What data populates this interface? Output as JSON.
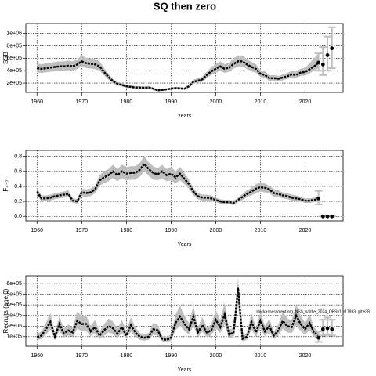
{
  "chart_data": [
    {
      "type": "line",
      "title": "SQ then zero",
      "ylabel": "SSB",
      "xlabel": "Years",
      "x": [
        1960,
        1961,
        1962,
        1963,
        1964,
        1965,
        1966,
        1967,
        1968,
        1969,
        1970,
        1971,
        1972,
        1973,
        1974,
        1975,
        1976,
        1977,
        1978,
        1979,
        1980,
        1981,
        1982,
        1983,
        1984,
        1985,
        1986,
        1987,
        1988,
        1989,
        1990,
        1991,
        1992,
        1993,
        1994,
        1995,
        1996,
        1997,
        1998,
        1999,
        2000,
        2001,
        2002,
        2003,
        2004,
        2005,
        2006,
        2007,
        2008,
        2009,
        2010,
        2011,
        2012,
        2013,
        2014,
        2015,
        2016,
        2017,
        2018,
        2019,
        2020,
        2021,
        2022,
        2023
      ],
      "values": [
        440000,
        430000,
        440000,
        450000,
        460000,
        470000,
        470000,
        480000,
        470000,
        500000,
        550000,
        520000,
        510000,
        500000,
        470000,
        380000,
        300000,
        230000,
        190000,
        170000,
        150000,
        140000,
        130000,
        130000,
        125000,
        130000,
        110000,
        85000,
        90000,
        100000,
        110000,
        120000,
        115000,
        110000,
        150000,
        220000,
        240000,
        260000,
        330000,
        390000,
        430000,
        470000,
        430000,
        450000,
        510000,
        550000,
        550000,
        500000,
        460000,
        430000,
        350000,
        330000,
        280000,
        280000,
        270000,
        290000,
        310000,
        340000,
        330000,
        370000,
        380000,
        420000,
        470000,
        520000
      ],
      "lower": [
        374000,
        366000,
        374000,
        383000,
        391000,
        400000,
        400000,
        408000,
        400000,
        425000,
        468000,
        442000,
        434000,
        425000,
        400000,
        323000,
        255000,
        196000,
        162000,
        145000,
        128000,
        119000,
        111000,
        111000,
        106000,
        111000,
        94000,
        72000,
        77000,
        85000,
        94000,
        102000,
        98000,
        94000,
        128000,
        187000,
        204000,
        221000,
        281000,
        332000,
        366000,
        400000,
        366000,
        383000,
        434000,
        468000,
        468000,
        425000,
        391000,
        366000,
        298000,
        281000,
        238000,
        238000,
        230000,
        247000,
        264000,
        289000,
        281000,
        315000,
        323000,
        357000,
        400000,
        442000
      ],
      "upper": [
        515000,
        503000,
        515000,
        527000,
        538000,
        550000,
        550000,
        562000,
        550000,
        585000,
        644000,
        608000,
        597000,
        585000,
        550000,
        445000,
        351000,
        269000,
        222000,
        199000,
        176000,
        164000,
        152000,
        152000,
        146000,
        152000,
        129000,
        99000,
        105000,
        117000,
        129000,
        140000,
        135000,
        129000,
        176000,
        257000,
        281000,
        304000,
        386000,
        456000,
        503000,
        550000,
        503000,
        527000,
        597000,
        644000,
        644000,
        585000,
        538000,
        503000,
        410000,
        386000,
        328000,
        328000,
        316000,
        339000,
        363000,
        398000,
        386000,
        433000,
        445000,
        520000,
        600000,
        680000
      ],
      "forecast": {
        "x": [
          2023,
          2024,
          2025,
          2026
        ],
        "values": [
          530000,
          500000,
          650000,
          760000
        ],
        "lower": [
          400000,
          330000,
          400000,
          440000
        ],
        "upper": [
          680000,
          780000,
          950000,
          1100000
        ]
      },
      "xlim": [
        1957.5,
        2028.5
      ],
      "ylim": [
        50000,
        1160000
      ],
      "xticks": [
        1960,
        1970,
        1980,
        1990,
        2000,
        2010,
        2020
      ],
      "yticks": [
        {
          "value": 200000,
          "label": "2e+05"
        },
        {
          "value": 400000,
          "label": "4e+05"
        },
        {
          "value": 600000,
          "label": "6e+05"
        },
        {
          "value": 800000,
          "label": "8e+05"
        },
        {
          "value": 1000000,
          "label": "1e+06"
        }
      ],
      "color": "#000000",
      "band_color": "#bebebe",
      "grid": true
    },
    {
      "type": "line",
      "ylabel": "F₄₋₇",
      "xlabel": "Years",
      "x": [
        1960,
        1961,
        1962,
        1963,
        1964,
        1965,
        1966,
        1967,
        1968,
        1969,
        1970,
        1971,
        1972,
        1973,
        1974,
        1975,
        1976,
        1977,
        1978,
        1979,
        1980,
        1981,
        1982,
        1983,
        1984,
        1985,
        1986,
        1987,
        1988,
        1989,
        1990,
        1991,
        1992,
        1993,
        1994,
        1995,
        1996,
        1997,
        1998,
        1999,
        2000,
        2001,
        2002,
        2003,
        2004,
        2005,
        2006,
        2007,
        2008,
        2009,
        2010,
        2011,
        2012,
        2013,
        2014,
        2015,
        2016,
        2017,
        2018,
        2019,
        2020,
        2021,
        2022,
        2023
      ],
      "values": [
        0.33,
        0.24,
        0.24,
        0.25,
        0.27,
        0.28,
        0.29,
        0.3,
        0.21,
        0.2,
        0.32,
        0.31,
        0.32,
        0.36,
        0.48,
        0.52,
        0.55,
        0.6,
        0.55,
        0.6,
        0.57,
        0.58,
        0.58,
        0.62,
        0.7,
        0.63,
        0.58,
        0.56,
        0.6,
        0.55,
        0.57,
        0.52,
        0.57,
        0.5,
        0.43,
        0.33,
        0.27,
        0.25,
        0.25,
        0.24,
        0.22,
        0.2,
        0.19,
        0.19,
        0.18,
        0.22,
        0.26,
        0.3,
        0.33,
        0.37,
        0.39,
        0.38,
        0.36,
        0.31,
        0.3,
        0.28,
        0.27,
        0.25,
        0.24,
        0.23,
        0.21,
        0.21,
        0.22,
        0.23
      ],
      "lower": [
        0.28,
        0.2,
        0.2,
        0.21,
        0.23,
        0.24,
        0.25,
        0.26,
        0.18,
        0.17,
        0.27,
        0.26,
        0.27,
        0.31,
        0.41,
        0.44,
        0.47,
        0.51,
        0.47,
        0.51,
        0.48,
        0.49,
        0.49,
        0.53,
        0.6,
        0.54,
        0.49,
        0.48,
        0.51,
        0.47,
        0.48,
        0.44,
        0.48,
        0.43,
        0.37,
        0.28,
        0.23,
        0.21,
        0.21,
        0.2,
        0.19,
        0.17,
        0.16,
        0.16,
        0.15,
        0.19,
        0.22,
        0.26,
        0.28,
        0.31,
        0.33,
        0.32,
        0.31,
        0.26,
        0.26,
        0.24,
        0.23,
        0.21,
        0.2,
        0.2,
        0.18,
        0.18,
        0.19,
        0.2
      ],
      "upper": [
        0.38,
        0.28,
        0.28,
        0.29,
        0.31,
        0.32,
        0.33,
        0.35,
        0.24,
        0.23,
        0.37,
        0.36,
        0.37,
        0.41,
        0.55,
        0.6,
        0.63,
        0.69,
        0.63,
        0.69,
        0.66,
        0.67,
        0.67,
        0.71,
        0.81,
        0.72,
        0.67,
        0.64,
        0.69,
        0.63,
        0.66,
        0.6,
        0.66,
        0.58,
        0.49,
        0.38,
        0.31,
        0.29,
        0.29,
        0.28,
        0.25,
        0.23,
        0.22,
        0.22,
        0.21,
        0.25,
        0.3,
        0.35,
        0.38,
        0.43,
        0.45,
        0.44,
        0.41,
        0.36,
        0.35,
        0.32,
        0.31,
        0.29,
        0.28,
        0.26,
        0.24,
        0.24,
        0.25,
        0.26
      ],
      "forecast": {
        "x": [
          2023,
          2024,
          2025,
          2026
        ],
        "values": [
          0.24,
          0,
          0,
          0
        ],
        "lower": [
          0.16,
          0,
          0,
          0
        ],
        "upper": [
          0.34,
          0,
          0,
          0
        ]
      },
      "xlim": [
        1957.5,
        2028.5
      ],
      "ylim": [
        -0.06,
        0.88
      ],
      "xticks": [
        1960,
        1970,
        1980,
        1990,
        2000,
        2010,
        2020
      ],
      "yticks": [
        {
          "value": 0,
          "label": "0.0"
        },
        0.2,
        0.4,
        0.6,
        0.8
      ],
      "color": "#000000",
      "band_color": "#bebebe",
      "grid": true
    },
    {
      "type": "line",
      "ylabel": "Recruits (age 0)",
      "xlabel": "Years",
      "annotation": "stockassessment.org, NSS_saithe_2024_OBSv1, r17993, git:e38",
      "x": [
        1960,
        1961,
        1962,
        1963,
        1964,
        1965,
        1966,
        1967,
        1968,
        1969,
        1970,
        1971,
        1972,
        1973,
        1974,
        1975,
        1976,
        1977,
        1978,
        1979,
        1980,
        1981,
        1982,
        1983,
        1984,
        1985,
        1986,
        1987,
        1988,
        1989,
        1990,
        1991,
        1992,
        1993,
        1994,
        1995,
        1996,
        1997,
        1998,
        1999,
        2000,
        2001,
        2002,
        2003,
        2004,
        2005,
        2006,
        2007,
        2008,
        2009,
        2010,
        2011,
        2012,
        2013,
        2014,
        2015,
        2016,
        2017,
        2018,
        2019,
        2020,
        2021,
        2022,
        2023
      ],
      "values": [
        95000,
        110000,
        170000,
        240000,
        100000,
        220000,
        130000,
        160000,
        140000,
        250000,
        220000,
        220000,
        150000,
        190000,
        110000,
        160000,
        200000,
        180000,
        130000,
        190000,
        110000,
        210000,
        140000,
        100000,
        90000,
        100000,
        170000,
        160000,
        80000,
        70000,
        90000,
        230000,
        290000,
        220000,
        170000,
        290000,
        140000,
        210000,
        140000,
        160000,
        260000,
        190000,
        310000,
        120000,
        140000,
        560000,
        80000,
        100000,
        240000,
        140000,
        250000,
        150000,
        200000,
        110000,
        160000,
        250000,
        200000,
        190000,
        300000,
        220000,
        170000,
        230000,
        140000,
        110000
      ],
      "lower": [
        67000,
        77000,
        119000,
        168000,
        70000,
        154000,
        91000,
        112000,
        98000,
        175000,
        154000,
        154000,
        105000,
        133000,
        77000,
        112000,
        140000,
        126000,
        91000,
        133000,
        77000,
        147000,
        98000,
        70000,
        63000,
        70000,
        119000,
        112000,
        56000,
        49000,
        63000,
        161000,
        203000,
        154000,
        119000,
        203000,
        98000,
        147000,
        98000,
        112000,
        182000,
        133000,
        217000,
        84000,
        98000,
        392000,
        56000,
        70000,
        168000,
        98000,
        175000,
        105000,
        140000,
        77000,
        112000,
        175000,
        140000,
        133000,
        210000,
        154000,
        119000,
        161000,
        98000,
        77000
      ],
      "upper": [
        128000,
        149000,
        230000,
        324000,
        135000,
        297000,
        176000,
        216000,
        189000,
        338000,
        297000,
        297000,
        203000,
        257000,
        149000,
        216000,
        270000,
        243000,
        176000,
        257000,
        149000,
        284000,
        189000,
        135000,
        122000,
        135000,
        230000,
        216000,
        108000,
        95000,
        122000,
        311000,
        392000,
        297000,
        230000,
        392000,
        189000,
        284000,
        189000,
        216000,
        351000,
        257000,
        419000,
        162000,
        189000,
        660000,
        108000,
        135000,
        324000,
        189000,
        338000,
        203000,
        270000,
        149000,
        216000,
        338000,
        270000,
        257000,
        405000,
        297000,
        230000,
        311000,
        189000,
        149000
      ],
      "forecast": {
        "x": [
          2023,
          2024,
          2025,
          2026
        ],
        "values": [
          90000,
          170000,
          180000,
          170000
        ],
        "lower": [
          50000,
          110000,
          120000,
          110000
        ],
        "upper": [
          150000,
          260000,
          280000,
          260000
        ]
      },
      "xlim": [
        1957.5,
        2028.5
      ],
      "ylim": [
        10000,
        675000
      ],
      "xticks": [
        1960,
        1970,
        1980,
        1990,
        2000,
        2010,
        2020
      ],
      "yticks": [
        {
          "value": 100000,
          "label": "1e+05"
        },
        {
          "value": 200000,
          "label": "2e+05"
        },
        {
          "value": 300000,
          "label": "3e+05"
        },
        {
          "value": 400000,
          "label": "4e+05"
        },
        {
          "value": 500000,
          "label": "5e+05"
        },
        {
          "value": 600000,
          "label": "6e+05"
        }
      ],
      "color": "#000000",
      "band_color": "#bebebe",
      "grid": true
    }
  ]
}
